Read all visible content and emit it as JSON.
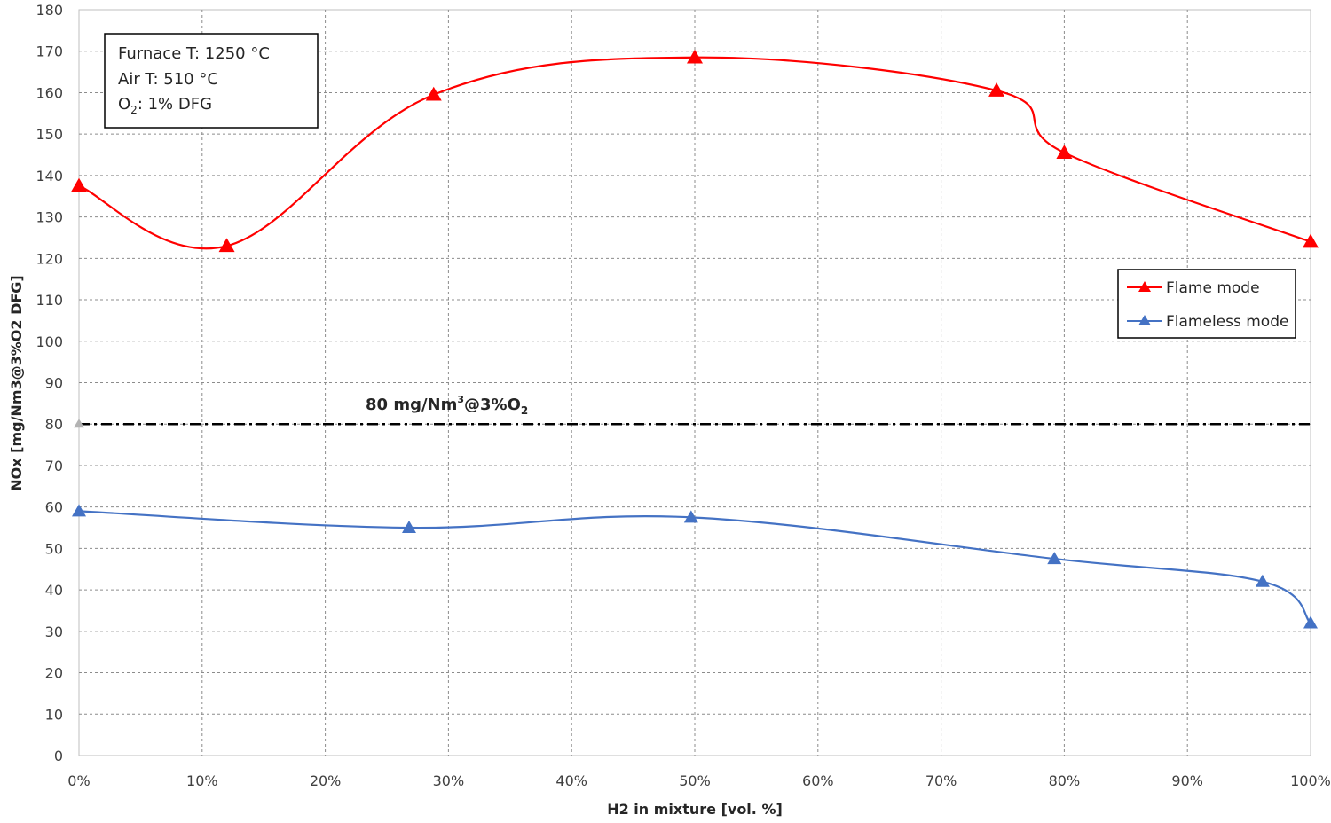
{
  "chart_data": {
    "type": "line",
    "xlabel": "H2 in mixture [vol. %]",
    "ylabel": "NOx [mg/Nm3@3%O2 DFG]",
    "xlim": [
      0,
      100
    ],
    "ylim": [
      0,
      180
    ],
    "xticks": [
      "0%",
      "10%",
      "20%",
      "30%",
      "40%",
      "50%",
      "60%",
      "70%",
      "80%",
      "90%",
      "100%"
    ],
    "yticks": [
      "0",
      "10",
      "20",
      "30",
      "40",
      "50",
      "60",
      "70",
      "80",
      "90",
      "100",
      "110",
      "120",
      "130",
      "140",
      "150",
      "160",
      "170",
      "180"
    ],
    "grid": true,
    "legend_position": "right",
    "series": [
      {
        "name": "Flame mode",
        "color": "#ff0000",
        "marker": "triangle",
        "x": [
          0,
          12,
          28.8,
          50,
          74.5,
          80,
          100
        ],
        "y": [
          137.5,
          123,
          159.5,
          168.5,
          160.5,
          145.5,
          124
        ]
      },
      {
        "name": "Flameless mode",
        "color": "#4472c4",
        "marker": "triangle",
        "x": [
          0,
          26.8,
          49.7,
          79.2,
          96.1,
          100
        ],
        "y": [
          59,
          55,
          57.5,
          47.5,
          42,
          32
        ]
      }
    ],
    "threshold": {
      "value": 80,
      "label_main": "80 mg/Nm",
      "label_sup": "3",
      "label_rest": "@3%O",
      "label_sub": "2",
      "color": "#000000"
    },
    "conditions": {
      "line1": "Furnace T: 1250 °C",
      "line2": "Air T: 510 °C",
      "line3_prefix": "O",
      "line3_sub": "2",
      "line3_suffix": ": 1% DFG"
    }
  }
}
